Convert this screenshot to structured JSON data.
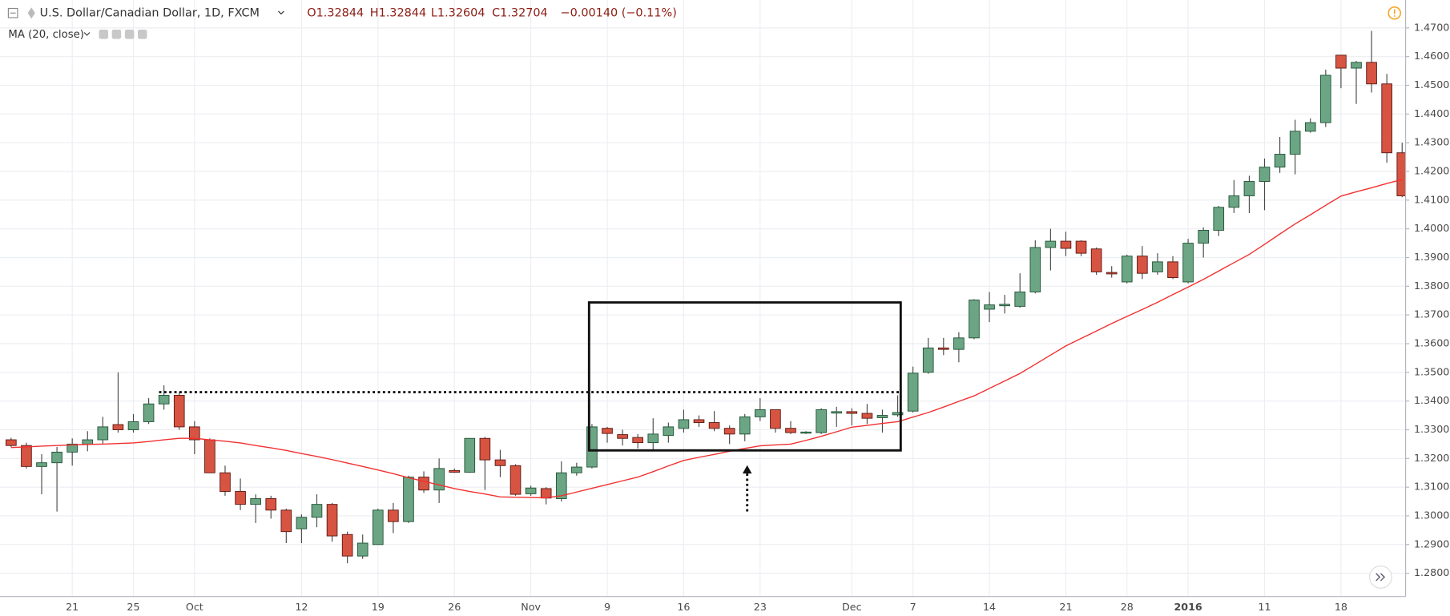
{
  "chart_data": {
    "type": "candlestick",
    "title": "U.S. Dollar/Canadian Dollar, 1D, FXCM",
    "ohlc_labels": [
      "O1.32844",
      "H1.32844",
      "L1.32604",
      "C1.32704",
      "−0.00140 (−0.11%)"
    ],
    "categories": [
      null,
      null,
      null,
      null,
      "21",
      null,
      null,
      null,
      "25",
      null,
      null,
      null,
      "Oct",
      null,
      null,
      null,
      null,
      null,
      null,
      "12",
      null,
      null,
      null,
      null,
      "19",
      null,
      null,
      null,
      null,
      "26",
      null,
      null,
      null,
      null,
      "Nov",
      null,
      null,
      null,
      null,
      "9",
      null,
      null,
      null,
      null,
      "16",
      null,
      null,
      null,
      null,
      "23",
      null,
      null,
      null,
      null,
      null,
      "Dec",
      null,
      null,
      null,
      "7",
      null,
      null,
      null,
      null,
      "14",
      null,
      null,
      null,
      null,
      "21",
      null,
      null,
      null,
      "28",
      null,
      null,
      null,
      "2016",
      null,
      null,
      null,
      null,
      "11",
      null,
      null,
      null,
      null,
      "18",
      null,
      null,
      null,
      null
    ],
    "open": [
      1.3265,
      1.3245,
      1.3172,
      1.3185,
      1.3222,
      1.325,
      1.3265,
      1.3318,
      1.33,
      1.3328,
      1.339,
      1.342,
      1.331,
      1.3265,
      1.315,
      1.3085,
      1.304,
      1.306,
      1.302,
      1.2955,
      1.2995,
      1.304,
      1.2935,
      1.286,
      1.29,
      1.302,
      1.298,
      1.3135,
      1.309,
      1.3158,
      1.3152,
      1.327,
      1.3195,
      1.3175,
      1.3077,
      1.3095,
      1.306,
      1.315,
      1.317,
      1.3305,
      1.3283,
      1.3273,
      1.3255,
      1.328,
      1.3305,
      1.3335,
      1.3325,
      1.3305,
      1.3285,
      1.3345,
      1.337,
      1.3305,
      1.3288,
      1.329,
      1.3358,
      1.3363,
      1.3357,
      1.3342,
      1.3352,
      1.3365,
      1.35,
      1.3585,
      1.358,
      1.362,
      1.372,
      1.3732,
      1.373,
      1.378,
      1.3935,
      1.3957,
      1.3957,
      1.393,
      1.3848,
      1.3815,
      1.3905,
      1.385,
      1.3885,
      1.3815,
      1.395,
      1.3995,
      1.4075,
      1.4115,
      1.4165,
      1.4215,
      1.426,
      1.434,
      1.437,
      1.4605,
      1.456,
      1.458,
      1.4505,
      1.4265
    ],
    "high": [
      1.3272,
      1.3255,
      1.3215,
      1.324,
      1.327,
      1.3295,
      1.3345,
      1.35,
      1.3355,
      1.341,
      1.3455,
      1.343,
      1.333,
      1.327,
      1.3175,
      1.313,
      1.3075,
      1.307,
      1.3025,
      1.3005,
      1.3075,
      1.3045,
      1.2945,
      1.2935,
      1.3025,
      1.3045,
      1.314,
      1.3155,
      1.32,
      1.3165,
      1.327,
      1.3275,
      1.323,
      1.318,
      1.3105,
      1.31,
      1.319,
      1.3185,
      1.332,
      1.331,
      1.33,
      1.3285,
      1.334,
      1.3325,
      1.337,
      1.335,
      1.3365,
      1.3315,
      1.3355,
      1.341,
      1.337,
      1.333,
      1.3295,
      1.3375,
      1.338,
      1.3375,
      1.339,
      1.337,
      1.342,
      1.352,
      1.362,
      1.362,
      1.364,
      1.3755,
      1.378,
      1.377,
      1.3845,
      1.396,
      1.4,
      1.399,
      1.396,
      1.3935,
      1.387,
      1.391,
      1.394,
      1.3915,
      1.3905,
      1.3965,
      1.4005,
      1.408,
      1.417,
      1.4185,
      1.4245,
      1.432,
      1.438,
      1.4385,
      1.4555,
      1.4605,
      1.4585,
      1.469,
      1.454,
      1.43
    ],
    "low": [
      1.324,
      1.3165,
      1.3075,
      1.3015,
      1.3175,
      1.3225,
      1.325,
      1.329,
      1.329,
      1.332,
      1.337,
      1.33,
      1.3215,
      1.315,
      1.307,
      1.302,
      1.2975,
      1.299,
      1.2905,
      1.2905,
      1.296,
      1.291,
      1.2835,
      1.285,
      1.29,
      1.294,
      1.2975,
      1.308,
      1.3045,
      1.315,
      1.315,
      1.309,
      1.3135,
      1.307,
      1.307,
      1.304,
      1.305,
      1.314,
      1.3165,
      1.3255,
      1.3245,
      1.3235,
      1.323,
      1.3255,
      1.329,
      1.331,
      1.3295,
      1.325,
      1.326,
      1.333,
      1.329,
      1.3285,
      1.3285,
      1.3285,
      1.331,
      1.3315,
      1.332,
      1.329,
      1.3345,
      1.336,
      1.3495,
      1.356,
      1.3535,
      1.3615,
      1.3675,
      1.3705,
      1.3725,
      1.3775,
      1.3855,
      1.3905,
      1.3905,
      1.384,
      1.383,
      1.381,
      1.3825,
      1.384,
      1.3825,
      1.381,
      1.39,
      1.3975,
      1.4055,
      1.4055,
      1.4065,
      1.4195,
      1.419,
      1.4335,
      1.4355,
      1.449,
      1.4435,
      1.4475,
      1.423,
      1.411
    ],
    "close": [
      1.3245,
      1.3172,
      1.3185,
      1.3222,
      1.325,
      1.3265,
      1.331,
      1.33,
      1.3328,
      1.339,
      1.342,
      1.331,
      1.3265,
      1.315,
      1.3085,
      1.304,
      1.306,
      1.302,
      1.2945,
      1.2995,
      1.304,
      1.293,
      1.286,
      1.2905,
      1.302,
      1.298,
      1.3135,
      1.309,
      1.3165,
      1.3152,
      1.327,
      1.3195,
      1.3175,
      1.3075,
      1.3097,
      1.3062,
      1.315,
      1.317,
      1.331,
      1.3287,
      1.327,
      1.3255,
      1.3285,
      1.331,
      1.3335,
      1.3325,
      1.3305,
      1.3285,
      1.3345,
      1.337,
      1.3305,
      1.329,
      1.3292,
      1.337,
      1.3363,
      1.3357,
      1.334,
      1.335,
      1.336,
      1.3497,
      1.3585,
      1.358,
      1.362,
      1.3752,
      1.3735,
      1.3737,
      1.378,
      1.3935,
      1.3957,
      1.3932,
      1.3915,
      1.385,
      1.3843,
      1.3905,
      1.3845,
      1.3885,
      1.383,
      1.395,
      1.3995,
      1.4075,
      1.4115,
      1.4165,
      1.4215,
      1.426,
      1.434,
      1.437,
      1.4535,
      1.456,
      1.458,
      1.4505,
      1.4265,
      1.4115
    ],
    "up_color": "#6ba583",
    "down_color": "#d75442",
    "wick_color": "#4a4a4a",
    "ma": {
      "name": "MA (20, close)",
      "color": "#f23030",
      "values": [
        1.3238,
        1.324,
        1.3243,
        1.3245,
        1.3247,
        1.3249,
        1.325,
        1.3252,
        1.3254,
        1.3259,
        1.3265,
        1.327,
        1.327,
        1.3265,
        1.326,
        1.3254,
        1.3245,
        1.3237,
        1.3228,
        1.3217,
        1.3207,
        1.3196,
        1.3184,
        1.3172,
        1.316,
        1.3147,
        1.3133,
        1.312,
        1.3108,
        1.3095,
        1.3085,
        1.3076,
        1.3066,
        1.3065,
        1.3064,
        1.3063,
        1.307,
        1.3083,
        1.3096,
        1.3109,
        1.3122,
        1.3135,
        1.3154,
        1.3174,
        1.3193,
        1.3204,
        1.3214,
        1.3225,
        1.3235,
        1.3244,
        1.3247,
        1.325,
        1.3263,
        1.3277,
        1.3293,
        1.3309,
        1.3315,
        1.3322,
        1.3328,
        1.3344,
        1.336,
        1.3379,
        1.3399,
        1.3418,
        1.3444,
        1.347,
        1.3496,
        1.3528,
        1.356,
        1.3592,
        1.3618,
        1.3644,
        1.367,
        1.3695,
        1.3719,
        1.3744,
        1.3771,
        1.3797,
        1.3824,
        1.3853,
        1.3882,
        1.3911,
        1.3946,
        1.3982,
        1.4017,
        1.4049,
        1.4082,
        1.4114,
        1.4129,
        1.4143,
        1.4158,
        1.4172
      ]
    },
    "ylim": [
      1.2719,
      1.4797
    ],
    "yticks": [
      {
        "value": 1.28,
        "label": "1.28000"
      },
      {
        "value": 1.29,
        "label": "1.29000"
      },
      {
        "value": 1.3,
        "label": "1.30000"
      },
      {
        "value": 1.31,
        "label": "1.31000"
      },
      {
        "value": 1.32,
        "label": "1.32000"
      },
      {
        "value": 1.33,
        "label": "1.33000"
      },
      {
        "value": 1.34,
        "label": "1.34000"
      },
      {
        "value": 1.35,
        "label": "1.35000"
      },
      {
        "value": 1.36,
        "label": "1.36000"
      },
      {
        "value": 1.37,
        "label": "1.37000"
      },
      {
        "value": 1.38,
        "label": "1.38000"
      },
      {
        "value": 1.39,
        "label": "1.39000"
      },
      {
        "value": 1.4,
        "label": "1.40000"
      },
      {
        "value": 1.41,
        "label": "1.41000"
      },
      {
        "value": 1.42,
        "label": "1.42000"
      },
      {
        "value": 1.43,
        "label": "1.43000"
      },
      {
        "value": 1.44,
        "label": "1.44000"
      },
      {
        "value": 1.45,
        "label": "1.45000"
      },
      {
        "value": 1.46,
        "label": "1.46000"
      },
      {
        "value": 1.47,
        "label": "1.47000"
      }
    ],
    "grid": true
  }
}
